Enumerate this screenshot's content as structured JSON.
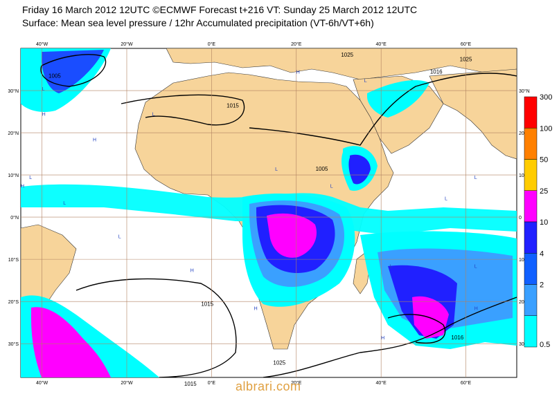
{
  "header": {
    "line1": "Friday 16 March 2012 12UTC ©ECMWF Forecast t+216 VT: Sunday 25 March 2012 12UTC",
    "line2": "Surface: Mean sea level pressure / 12hr Accumulated precipitation (VT-6h/VT+6h)"
  },
  "axes": {
    "lon_labels": [
      "40°W",
      "20°W",
      "0°E",
      "20°E",
      "40°E",
      "60°E"
    ],
    "lon_values": [
      -40,
      -20,
      0,
      20,
      40,
      60
    ],
    "lat_labels": [
      "30°N",
      "20°N",
      "10°N",
      "0°N",
      "10°S",
      "20°S",
      "30°S"
    ],
    "lat_values": [
      30,
      20,
      10,
      0,
      -10,
      -20,
      -30
    ],
    "right_lat_labels": [
      "30°N",
      "20",
      "10",
      "0",
      "10",
      "20",
      "30"
    ]
  },
  "isobar_labels": [
    "1005",
    "1015",
    "1025",
    "1016",
    "1015",
    "1005",
    "1016",
    "1015",
    "1025",
    "1025"
  ],
  "pressure_markers": {
    "H": [
      "H",
      "H",
      "H",
      "H",
      "H",
      "H",
      "H",
      "H"
    ],
    "L": [
      "L",
      "L",
      "L",
      "L",
      "L",
      "L",
      "L",
      "L",
      "L",
      "L",
      "L",
      "L"
    ]
  },
  "legend": {
    "labels": [
      "300",
      "100",
      "50",
      "25",
      "10",
      "4",
      "2",
      "0.5"
    ],
    "colors": [
      "#ff0000",
      "#ff8000",
      "#ffcc00",
      "#ff00ff",
      "#2020ff",
      "#1060ff",
      "#3aa0ff",
      "#00ffff"
    ]
  },
  "colors": {
    "ocean": "#ffffff",
    "land": "#f7d49a",
    "isobar": "#000000",
    "grid": "#b08060"
  },
  "watermark": "albrari.com"
}
